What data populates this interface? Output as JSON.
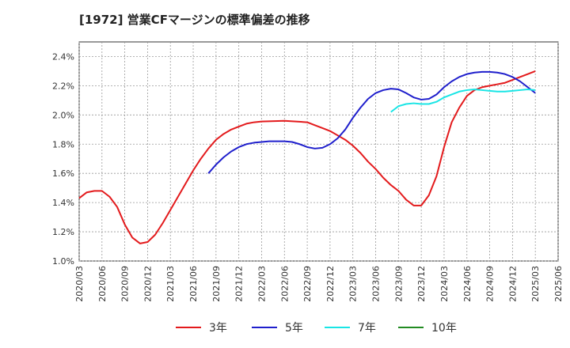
{
  "chart_data": {
    "type": "line",
    "title": "[1972]  営業CFマージンの標準偏差の推移",
    "xlabel": "",
    "ylabel": "",
    "ylim": [
      1.0,
      2.5
    ],
    "y_ticks": [
      "1.0%",
      "1.2%",
      "1.4%",
      "1.6%",
      "1.8%",
      "2.0%",
      "2.2%",
      "2.4%"
    ],
    "y_tick_values": [
      1.0,
      1.2,
      1.4,
      1.6,
      1.8,
      2.0,
      2.2,
      2.4
    ],
    "x_ticks": [
      "2020/03",
      "2020/06",
      "2020/09",
      "2020/12",
      "2021/03",
      "2021/06",
      "2021/09",
      "2021/12",
      "2022/03",
      "2022/06",
      "2022/09",
      "2022/12",
      "2023/03",
      "2023/06",
      "2023/09",
      "2023/12",
      "2024/03",
      "2024/06",
      "2024/09",
      "2024/12",
      "2025/03",
      "2025/06"
    ],
    "grid": true,
    "legend_position": "bottom",
    "series": [
      {
        "name": "3年",
        "color": "#e31a1c",
        "x": [
          "2020/03",
          "2020/04",
          "2020/05",
          "2020/06",
          "2020/07",
          "2020/08",
          "2020/09",
          "2020/10",
          "2020/11",
          "2020/12",
          "2021/01",
          "2021/02",
          "2021/03",
          "2021/04",
          "2021/05",
          "2021/06",
          "2021/07",
          "2021/08",
          "2021/09",
          "2021/10",
          "2021/11",
          "2021/12",
          "2022/01",
          "2022/02",
          "2022/03",
          "2022/06",
          "2022/09",
          "2022/10",
          "2022/11",
          "2022/12",
          "2023/01",
          "2023/02",
          "2023/03",
          "2023/04",
          "2023/05",
          "2023/06",
          "2023/07",
          "2023/08",
          "2023/09",
          "2023/10",
          "2023/11",
          "2023/12",
          "2024/01",
          "2024/02",
          "2024/03",
          "2024/04",
          "2024/05",
          "2024/06",
          "2024/07",
          "2024/08",
          "2024/09",
          "2024/10",
          "2024/11",
          "2024/12",
          "2025/01",
          "2025/02",
          "2025/03"
        ],
        "values": [
          1.43,
          1.47,
          1.48,
          1.48,
          1.44,
          1.37,
          1.25,
          1.16,
          1.12,
          1.13,
          1.18,
          1.26,
          1.35,
          1.44,
          1.53,
          1.62,
          1.7,
          1.77,
          1.83,
          1.87,
          1.9,
          1.92,
          1.94,
          1.95,
          1.955,
          1.96,
          1.95,
          1.93,
          1.91,
          1.89,
          1.86,
          1.83,
          1.79,
          1.74,
          1.68,
          1.63,
          1.57,
          1.52,
          1.48,
          1.42,
          1.38,
          1.38,
          1.45,
          1.58,
          1.78,
          1.95,
          2.05,
          2.13,
          2.17,
          2.19,
          2.2,
          2.21,
          2.22,
          2.24,
          2.26,
          2.28,
          2.3
        ]
      },
      {
        "name": "5年",
        "color": "#1f1fcc",
        "x": [
          "2021/08",
          "2021/09",
          "2021/10",
          "2021/11",
          "2021/12",
          "2022/01",
          "2022/02",
          "2022/03",
          "2022/04",
          "2022/05",
          "2022/06",
          "2022/07",
          "2022/08",
          "2022/09",
          "2022/10",
          "2022/11",
          "2022/12",
          "2023/01",
          "2023/02",
          "2023/03",
          "2023/04",
          "2023/05",
          "2023/06",
          "2023/07",
          "2023/08",
          "2023/09",
          "2023/10",
          "2023/11",
          "2023/12",
          "2024/01",
          "2024/02",
          "2024/03",
          "2024/04",
          "2024/05",
          "2024/06",
          "2024/07",
          "2024/08",
          "2024/09",
          "2024/10",
          "2024/11",
          "2024/12",
          "2025/01",
          "2025/02",
          "2025/03"
        ],
        "values": [
          1.6,
          1.66,
          1.71,
          1.75,
          1.78,
          1.8,
          1.81,
          1.815,
          1.82,
          1.82,
          1.82,
          1.815,
          1.8,
          1.78,
          1.77,
          1.775,
          1.8,
          1.84,
          1.9,
          1.98,
          2.05,
          2.11,
          2.15,
          2.17,
          2.18,
          2.175,
          2.15,
          2.12,
          2.105,
          2.11,
          2.14,
          2.19,
          2.23,
          2.26,
          2.28,
          2.29,
          2.295,
          2.295,
          2.29,
          2.28,
          2.26,
          2.23,
          2.19,
          2.15
        ]
      },
      {
        "name": "7年",
        "color": "#19e5e5",
        "x": [
          "2023/08",
          "2023/09",
          "2023/10",
          "2023/11",
          "2023/12",
          "2024/01",
          "2024/02",
          "2024/03",
          "2024/04",
          "2024/05",
          "2024/06",
          "2024/07",
          "2024/08",
          "2024/09",
          "2024/10",
          "2024/11",
          "2024/12",
          "2025/01",
          "2025/02",
          "2025/03"
        ],
        "values": [
          2.02,
          2.06,
          2.075,
          2.08,
          2.075,
          2.075,
          2.09,
          2.12,
          2.14,
          2.16,
          2.17,
          2.175,
          2.17,
          2.165,
          2.16,
          2.16,
          2.165,
          2.17,
          2.175,
          2.17
        ]
      },
      {
        "name": "10年",
        "color": "#228b22",
        "x": [],
        "values": []
      }
    ]
  }
}
